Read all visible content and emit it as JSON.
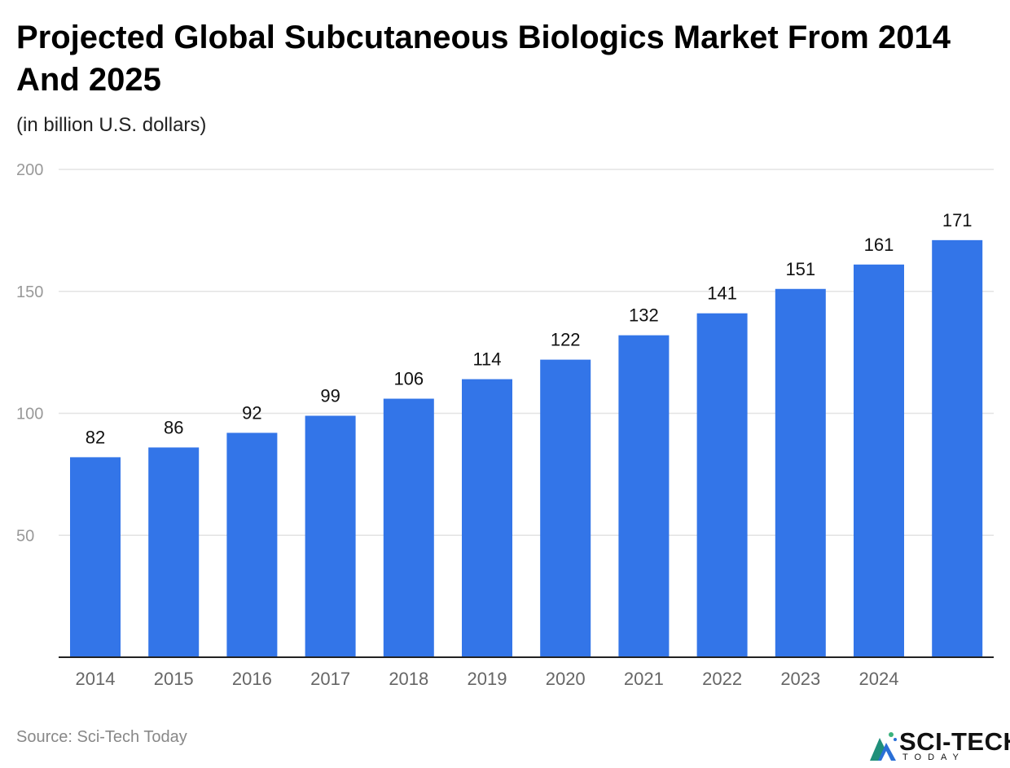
{
  "header": {
    "title": "Projected Global Subcutaneous Biologics Market From 2014 And 2025",
    "subtitle": "(in billion U.S. dollars)"
  },
  "footer": {
    "source": "Source: Sci-Tech Today",
    "logo_text": "SCI-TECH",
    "logo_subtext": "TODAY"
  },
  "chart_data": {
    "type": "bar",
    "title": "Projected Global Subcutaneous Biologics Market From 2014 And 2025",
    "subtitle": "(in billion U.S. dollars)",
    "categories": [
      "2014",
      "2015",
      "2016",
      "2017",
      "2018",
      "2019",
      "2020",
      "2021",
      "2022",
      "2023",
      "2024",
      ""
    ],
    "values": [
      82,
      86,
      92,
      99,
      106,
      114,
      122,
      132,
      141,
      151,
      161,
      171
    ],
    "ylim": [
      0,
      200
    ],
    "yticks": [
      50,
      100,
      150,
      200
    ],
    "grid": true,
    "data_labels": true,
    "bar_color": "#3375e8",
    "xlabel": "",
    "ylabel": ""
  }
}
